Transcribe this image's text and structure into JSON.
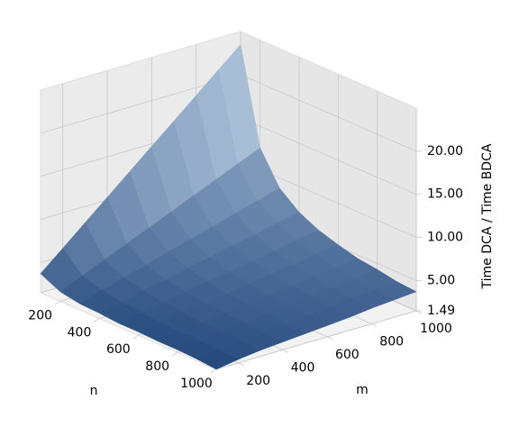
{
  "chart_data": {
    "type": "surface",
    "xlabel": "n",
    "ylabel": "m",
    "zlabel": "Time DCA / Time BDCA",
    "x": [
      100,
      200,
      300,
      400,
      500,
      600,
      700,
      800,
      900,
      1000
    ],
    "y": [
      100,
      200,
      300,
      400,
      500,
      600,
      700,
      800,
      900,
      1000
    ],
    "z": [
      [
        3.7,
        5.9,
        8.1,
        10.3,
        12.5,
        14.7,
        16.9,
        19.1,
        21.3,
        23.5
      ],
      [
        2.6,
        3.7,
        4.8,
        5.9,
        7.0,
        8.1,
        9.2,
        10.3,
        11.4,
        12.5
      ],
      [
        2.2,
        3.0,
        3.7,
        4.4,
        5.2,
        5.9,
        6.6,
        7.4,
        8.1,
        8.8
      ],
      [
        2.1,
        2.6,
        3.2,
        3.7,
        4.3,
        4.8,
        5.4,
        5.9,
        6.5,
        7.0
      ],
      [
        1.9,
        2.4,
        2.8,
        3.3,
        3.7,
        4.1,
        4.6,
        5.0,
        5.5,
        5.9
      ],
      [
        1.9,
        2.2,
        2.6,
        3.0,
        3.3,
        3.7,
        4.1,
        4.4,
        4.8,
        5.2
      ],
      [
        1.8,
        2.1,
        2.4,
        2.8,
        3.1,
        3.4,
        3.7,
        4.0,
        4.3,
        4.6
      ],
      [
        1.8,
        2.1,
        2.3,
        2.6,
        2.9,
        3.2,
        3.4,
        3.7,
        4.0,
        4.3
      ],
      [
        1.7,
        2.0,
        2.2,
        2.5,
        2.7,
        3.0,
        3.2,
        3.5,
        3.7,
        3.9
      ],
      [
        1.49,
        1.9,
        2.2,
        2.4,
        2.6,
        2.8,
        3.0,
        3.3,
        3.5,
        3.7
      ]
    ],
    "xlim": [
      100,
      1000
    ],
    "ylim": [
      100,
      1000
    ],
    "zlim": [
      1.49,
      25
    ],
    "xticks": [
      200,
      400,
      600,
      800,
      1000
    ],
    "yticks": [
      200,
      400,
      600,
      800,
      1000
    ],
    "zticks": [
      1.49,
      {
        "value": 5,
        "label": "5.00"
      },
      {
        "value": 10,
        "label": "10.00"
      },
      {
        "value": 15,
        "label": "15.00"
      },
      {
        "value": 20,
        "label": "20.00"
      }
    ],
    "colormap": [
      "#1a3f75",
      "#cfe1f2"
    ]
  }
}
